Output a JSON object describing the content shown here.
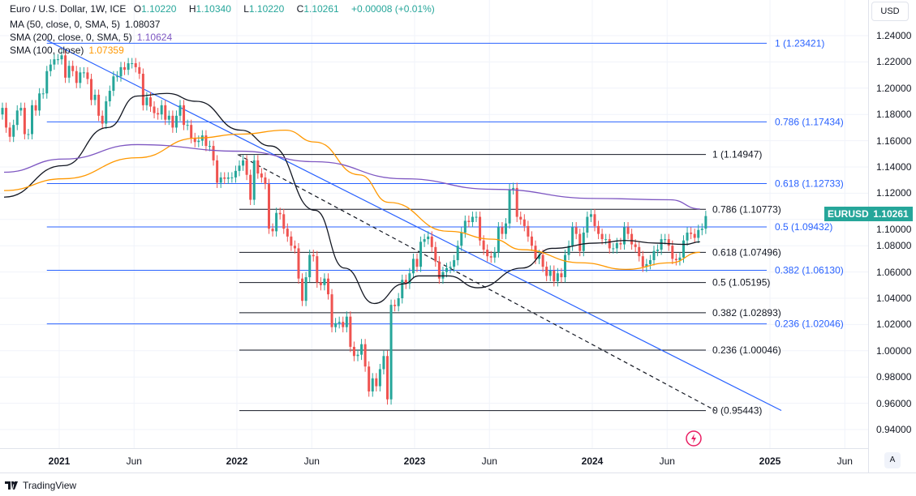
{
  "legend": {
    "symbol": "Euro / U.S. Dollar, 1W, ICE",
    "ohlc": {
      "o_label": "O",
      "o": "1.10220",
      "h_label": "H",
      "h": "1.10340",
      "l_label": "L",
      "l": "1.10220",
      "c_label": "C",
      "c": "1.10261",
      "change": "+0.00008 (+0.01%)"
    },
    "indicators": [
      {
        "label": "MA (50, close, 0, SMA, 5)",
        "value": "1.08037",
        "color": "#131722"
      },
      {
        "label": "SMA (200, close, 0, SMA, 5)",
        "value": "1.10624",
        "color": "#7e57c2"
      },
      {
        "label": "SMA (100, close)",
        "value": "1.07359",
        "color": "#ff9800"
      }
    ]
  },
  "currency_button": "USD",
  "auto_button": "A",
  "brand": "TradingView",
  "price_tag": {
    "symbol": "EURUSD",
    "value": "1.10261",
    "color": "#26a69a"
  },
  "chart_data": {
    "type": "candlestick",
    "ylim": [
      0.93,
      1.25
    ],
    "y_ticks": [
      "1.24000",
      "1.22000",
      "1.20000",
      "1.18000",
      "1.16000",
      "1.14000",
      "1.12000",
      "1.10000",
      "1.08000",
      "1.06000",
      "1.04000",
      "1.02000",
      "1.00000",
      "0.98000",
      "0.96000",
      "0.94000"
    ],
    "x_ticks": [
      {
        "date": "2021-01",
        "label": "2021"
      },
      {
        "date": "2021-06",
        "label": "Jun"
      },
      {
        "date": "2022-01",
        "label": "2022"
      },
      {
        "date": "2022-06",
        "label": "Jun"
      },
      {
        "date": "2023-01",
        "label": "2023"
      },
      {
        "date": "2023-06",
        "label": "Jun"
      },
      {
        "date": "2024-01",
        "label": "2024"
      },
      {
        "date": "2024-06",
        "label": "Jun"
      },
      {
        "date": "2025-01",
        "label": "2025"
      },
      {
        "date": "2025-06",
        "label": "Jun"
      }
    ],
    "grid": true,
    "colors": {
      "up": "#26a69a",
      "down": "#ef5350"
    },
    "weekly_closes": [
      {
        "m": "2020-09",
        "c": [
          1.185,
          1.17,
          1.163,
          1.172
        ]
      },
      {
        "m": "2020-10",
        "c": [
          1.183,
          1.185,
          1.165,
          1.165
        ]
      },
      {
        "m": "2020-11",
        "c": [
          1.187,
          1.183,
          1.196,
          1.196
        ]
      },
      {
        "m": "2020-12",
        "c": [
          1.213,
          1.218,
          1.222,
          1.222
        ]
      },
      {
        "m": "2021-01",
        "c": [
          1.225,
          1.208,
          1.217,
          1.213
        ]
      },
      {
        "m": "2021-02",
        "c": [
          1.204,
          1.212,
          1.212,
          1.207
        ]
      },
      {
        "m": "2021-03",
        "c": [
          1.191,
          1.195,
          1.179,
          1.173
        ]
      },
      {
        "m": "2021-04",
        "c": [
          1.19,
          1.198,
          1.209,
          1.209
        ]
      },
      {
        "m": "2021-05",
        "c": [
          1.216,
          1.214,
          1.219,
          1.219
        ]
      },
      {
        "m": "2021-06",
        "c": [
          1.216,
          1.211,
          1.187,
          1.193
        ]
      },
      {
        "m": "2021-07",
        "c": [
          1.186,
          1.181,
          1.18,
          1.187
        ]
      },
      {
        "m": "2021-08",
        "c": [
          1.176,
          1.179,
          1.17,
          1.179
        ]
      },
      {
        "m": "2021-09",
        "c": [
          1.187,
          1.172,
          1.172,
          1.162
        ]
      },
      {
        "m": "2021-10",
        "c": [
          1.159,
          1.16,
          1.164,
          1.156
        ]
      },
      {
        "m": "2021-11",
        "c": [
          1.156,
          1.145,
          1.128,
          1.132
        ]
      },
      {
        "m": "2021-12",
        "c": [
          1.131,
          1.132,
          1.132,
          1.137
        ]
      },
      {
        "m": "2022-01",
        "c": [
          1.141,
          1.145,
          1.134,
          1.115
        ]
      },
      {
        "m": "2022-02",
        "c": [
          1.145,
          1.135,
          1.132,
          1.127
        ]
      },
      {
        "m": "2022-03",
        "c": [
          1.093,
          1.091,
          1.105,
          1.104
        ]
      },
      {
        "m": "2022-04",
        "c": [
          1.093,
          1.087,
          1.08,
          1.078
        ]
      },
      {
        "m": "2022-05",
        "c": [
          1.055,
          1.038,
          1.056,
          1.073
        ]
      },
      {
        "m": "2022-06",
        "c": [
          1.072,
          1.052,
          1.05,
          1.055
        ]
      },
      {
        "m": "2022-07",
        "c": [
          1.043,
          1.018,
          1.021,
          1.022
        ]
      },
      {
        "m": "2022-08",
        "c": [
          1.018,
          1.026,
          1.003,
          0.996
        ]
      },
      {
        "m": "2022-09",
        "c": [
          0.997,
          1.005,
          0.988,
          0.969
        ]
      },
      {
        "m": "2022-10",
        "c": [
          0.979,
          0.973,
          0.986,
          0.996
        ]
      },
      {
        "m": "2022-11",
        "c": [
          0.963,
          1.035,
          1.034,
          1.04
        ]
      },
      {
        "m": "2022-12",
        "c": [
          1.054,
          1.051,
          1.059,
          1.07
        ]
      },
      {
        "m": "2023-01",
        "c": [
          1.064,
          1.083,
          1.085,
          1.087
        ]
      },
      {
        "m": "2023-02",
        "c": [
          1.079,
          1.068,
          1.055,
          1.06
        ]
      },
      {
        "m": "2023-03",
        "c": [
          1.063,
          1.064,
          1.069,
          1.08
        ]
      },
      {
        "m": "2023-04",
        "c": [
          1.09,
          1.099,
          1.098,
          1.102
        ]
      },
      {
        "m": "2023-05",
        "c": [
          1.102,
          1.084,
          1.077,
          1.072
        ]
      },
      {
        "m": "2023-06",
        "c": [
          1.071,
          1.075,
          1.094,
          1.089
        ]
      },
      {
        "m": "2023-07",
        "c": [
          1.097,
          1.123,
          1.124,
          1.102
        ]
      },
      {
        "m": "2023-08",
        "c": [
          1.1,
          1.095,
          1.087,
          1.08
        ]
      },
      {
        "m": "2023-09",
        "c": [
          1.07,
          1.073,
          1.064,
          1.057
        ]
      },
      {
        "m": "2023-10",
        "c": [
          1.061,
          1.053,
          1.059,
          1.056
        ]
      },
      {
        "m": "2023-11",
        "c": [
          1.073,
          1.08,
          1.094,
          1.089
        ]
      },
      {
        "m": "2023-12",
        "c": [
          1.076,
          1.09,
          1.102,
          1.104
        ]
      },
      {
        "m": "2024-01",
        "c": [
          1.095,
          1.089,
          1.085,
          1.085
        ]
      },
      {
        "m": "2024-02",
        "c": [
          1.078,
          1.078,
          1.082,
          1.081
        ]
      },
      {
        "m": "2024-03",
        "c": [
          1.094,
          1.089,
          1.081,
          1.079
        ]
      },
      {
        "m": "2024-04",
        "c": [
          1.072,
          1.064,
          1.066,
          1.069
        ]
      },
      {
        "m": "2024-05",
        "c": [
          1.076,
          1.077,
          1.085,
          1.085
        ]
      },
      {
        "m": "2024-06",
        "c": [
          1.08,
          1.07,
          1.069,
          1.071
        ]
      },
      {
        "m": "2024-07",
        "c": [
          1.084,
          1.09,
          1.089,
          1.086
        ]
      },
      {
        "m": "2024-08",
        "c": [
          1.092,
          1.093,
          1.10261
        ]
      }
    ],
    "moving_averages": [
      {
        "name": "MA (50, close, 0, SMA, 5)",
        "color": "#131722",
        "points": [
          [
            "2020-09",
            1.117
          ],
          [
            "2021-01",
            1.141
          ],
          [
            "2021-04",
            1.17
          ],
          [
            "2021-06",
            1.194
          ],
          [
            "2021-08",
            1.196
          ],
          [
            "2021-10",
            1.19
          ],
          [
            "2022-01",
            1.168
          ],
          [
            "2022-03",
            1.156
          ],
          [
            "2022-06",
            1.107
          ],
          [
            "2022-08",
            1.063
          ],
          [
            "2022-10",
            1.036
          ],
          [
            "2022-12",
            1.051
          ],
          [
            "2023-01",
            1.057
          ],
          [
            "2023-03",
            1.057
          ],
          [
            "2023-05",
            1.048
          ],
          [
            "2023-08",
            1.063
          ],
          [
            "2023-10",
            1.078
          ],
          [
            "2024-01",
            1.082
          ],
          [
            "2024-03",
            1.084
          ],
          [
            "2024-05",
            1.082
          ],
          [
            "2024-07",
            1.081
          ],
          [
            "2024-08",
            1.083
          ]
        ]
      },
      {
        "name": "SMA (100, close)",
        "color": "#ff9800",
        "points": [
          [
            "2020-09",
            1.122
          ],
          [
            "2021-01",
            1.131
          ],
          [
            "2021-06",
            1.147
          ],
          [
            "2021-10",
            1.162
          ],
          [
            "2022-01",
            1.165
          ],
          [
            "2022-04",
            1.168
          ],
          [
            "2022-06",
            1.159
          ],
          [
            "2022-09",
            1.134
          ],
          [
            "2022-11",
            1.113
          ],
          [
            "2023-03",
            1.091
          ],
          [
            "2023-06",
            1.085
          ],
          [
            "2023-08",
            1.077
          ],
          [
            "2023-12",
            1.067
          ],
          [
            "2024-03",
            1.062
          ],
          [
            "2024-06",
            1.067
          ],
          [
            "2024-08",
            1.075
          ]
        ]
      },
      {
        "name": "SMA (200, close, 0, SMA, 5)",
        "color": "#7e57c2",
        "points": [
          [
            "2020-09",
            1.136
          ],
          [
            "2021-01",
            1.146
          ],
          [
            "2021-06",
            1.157
          ],
          [
            "2022-01",
            1.152
          ],
          [
            "2022-06",
            1.144
          ],
          [
            "2022-12",
            1.131
          ],
          [
            "2023-06",
            1.123
          ],
          [
            "2024-01",
            1.116
          ],
          [
            "2024-06",
            1.115
          ],
          [
            "2024-08",
            1.108
          ]
        ]
      }
    ],
    "fib_blue": {
      "color": "#2962ff",
      "start": "2020-12",
      "end": "2025-01",
      "levels": [
        {
          "price": 1.23421,
          "label": "1 (1.23421)"
        },
        {
          "price": 1.17434,
          "label": "0.786 (1.17434)"
        },
        {
          "price": 1.12733,
          "label": "0.618 (1.12733)"
        },
        {
          "price": 1.09432,
          "label": "0.5 (1.09432)"
        },
        {
          "price": 1.0613,
          "label": "0.382 (1.06130)"
        },
        {
          "price": 1.02046,
          "label": "0.236 (1.02046)"
        }
      ]
    },
    "fib_black": {
      "color": "#131722",
      "start": "2022-01",
      "end": "2024-09",
      "levels": [
        {
          "price": 1.14947,
          "label": "1 (1.14947)"
        },
        {
          "price": 1.10773,
          "label": "0.786 (1.10773)"
        },
        {
          "price": 1.07496,
          "label": "0.618 (1.07496)"
        },
        {
          "price": 1.05195,
          "label": "0.5 (1.05195)"
        },
        {
          "price": 1.02893,
          "label": "0.382 (1.02893)"
        },
        {
          "price": 1.00046,
          "label": "0.236 (1.00046)"
        },
        {
          "price": 0.95443,
          "label": "0 (0.95443)"
        }
      ]
    },
    "trendlines": [
      {
        "from": [
          "2020-12",
          1.2365
        ],
        "to": [
          "2025-01",
          0.9545
        ],
        "color": "#2962ff",
        "dashed": false
      },
      {
        "from": [
          "2022-01",
          1.1495
        ],
        "to": [
          "2024-09",
          0.9544
        ],
        "color": "#131722",
        "dashed": true
      }
    ]
  }
}
